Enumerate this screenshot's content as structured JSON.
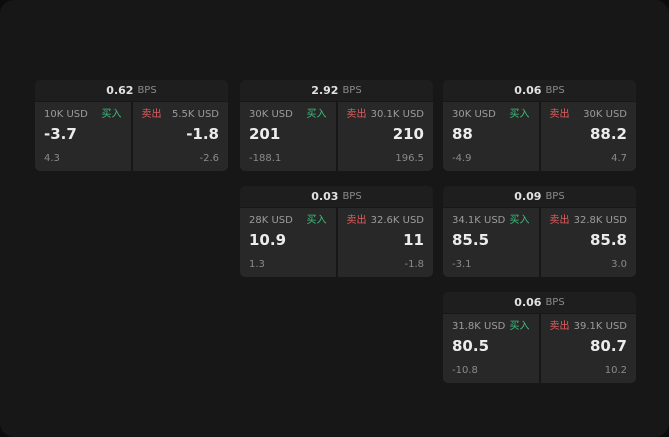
{
  "labels": {
    "buy": "买入",
    "sell": "卖出",
    "bps": "BPS"
  },
  "colors": {
    "background": "#171717",
    "card_header": "#1e1e1e",
    "panel": "#282828",
    "buy_green": "#3fbf7f",
    "sell_red": "#e25d5d",
    "primary_text": "#ececec",
    "secondary_text": "#9c9c9c"
  },
  "cards": [
    {
      "spread": "0.62",
      "buy": {
        "amount": "10K USD",
        "price": "-3.7",
        "sub": "4.3"
      },
      "sell": {
        "amount": "5.5K USD",
        "price": "-1.8",
        "sub": "-2.6"
      }
    },
    {
      "spread": "2.92",
      "buy": {
        "amount": "30K USD",
        "price": "201",
        "sub": "-188.1"
      },
      "sell": {
        "amount": "30.1K USD",
        "price": "210",
        "sub": "196.5"
      }
    },
    {
      "spread": "0.06",
      "buy": {
        "amount": "30K USD",
        "price": "88",
        "sub": "-4.9"
      },
      "sell": {
        "amount": "30K USD",
        "price": "88.2",
        "sub": "4.7"
      }
    },
    {
      "spread": "0.03",
      "buy": {
        "amount": "28K USD",
        "price": "10.9",
        "sub": "1.3"
      },
      "sell": {
        "amount": "32.6K USD",
        "price": "11",
        "sub": "-1.8"
      }
    },
    {
      "spread": "0.09",
      "buy": {
        "amount": "34.1K USD",
        "price": "85.5",
        "sub": "-3.1"
      },
      "sell": {
        "amount": "32.8K USD",
        "price": "85.8",
        "sub": "3.0"
      }
    },
    {
      "spread": "0.06",
      "buy": {
        "amount": "31.8K USD",
        "price": "80.5",
        "sub": "-10.8"
      },
      "sell": {
        "amount": "39.1K USD",
        "price": "80.7",
        "sub": "10.2"
      }
    }
  ]
}
